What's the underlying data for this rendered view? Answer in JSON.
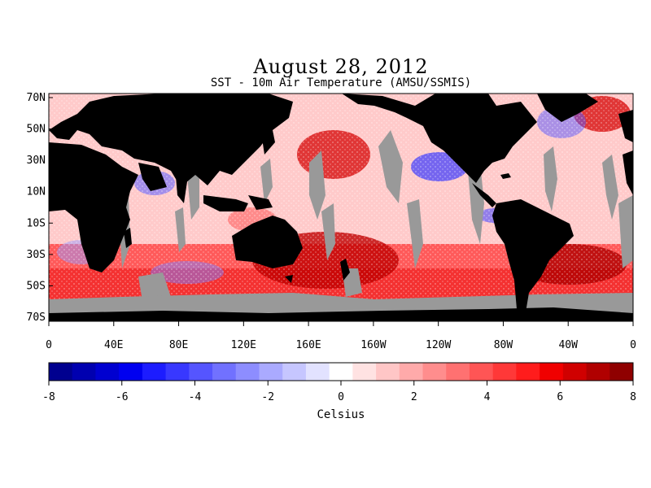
{
  "title": "August 28, 2012",
  "subtitle": "SST - 10m Air Temperature (AMSU/SSMIS)",
  "map": {
    "lat_labels": [
      "70N",
      "50N",
      "30N",
      "10N",
      "10S",
      "30S",
      "50S",
      "70S"
    ],
    "lon_labels": [
      "0",
      "40E",
      "80E",
      "120E",
      "160E",
      "160W",
      "120W",
      "80W",
      "40W",
      "0"
    ],
    "land_color": "#000000",
    "missing_color": "#999999"
  },
  "colorbar": {
    "unit": "Celsius",
    "min": -8,
    "max": 8,
    "tick_labels": [
      "-8",
      "-6",
      "-4",
      "-2",
      "0",
      "2",
      "4",
      "6",
      "8"
    ],
    "colors": [
      "#00008f",
      "#0000b0",
      "#0000d0",
      "#0000f0",
      "#1c1cff",
      "#3838ff",
      "#5555ff",
      "#7171ff",
      "#8d8dff",
      "#aaaaff",
      "#c6c6ff",
      "#e2e2ff",
      "#ffffff",
      "#ffe2e2",
      "#ffc6c6",
      "#ffaaaa",
      "#ff8d8d",
      "#ff7171",
      "#ff5555",
      "#ff3838",
      "#ff1c1c",
      "#f00000",
      "#d00000",
      "#b00000",
      "#8f0000"
    ]
  }
}
